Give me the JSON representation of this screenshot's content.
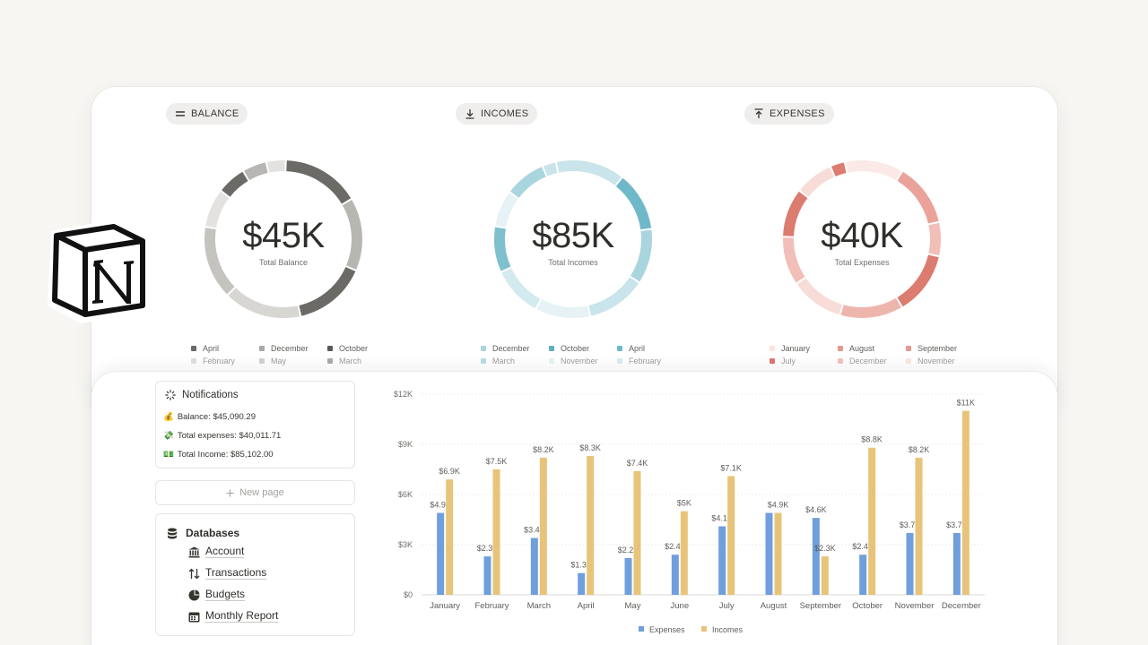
{
  "summary": {
    "balance": {
      "pill_label": "BALANCE",
      "icon": "equals-icon",
      "value": "$45K",
      "caption": "Total Balance",
      "slices": [
        {
          "color": "#e3e2e0",
          "value": 4
        },
        {
          "color": "#6b6a66",
          "value": 16
        },
        {
          "color": "#b7b6b3",
          "value": 15
        },
        {
          "color": "#6b6a66",
          "value": 15
        },
        {
          "color": "#d7d6d3",
          "value": 16
        },
        {
          "color": "#c4c3c0",
          "value": 15
        },
        {
          "color": "#e3e2e0",
          "value": 8
        },
        {
          "color": "#6b6a66",
          "value": 6
        },
        {
          "color": "#b7b6b3",
          "value": 5
        }
      ],
      "legend": [
        {
          "label": "April",
          "color": "#6b6a66",
          "faded": false
        },
        {
          "label": "December",
          "color": "#a9a8a5",
          "faded": false
        },
        {
          "label": "October",
          "color": "#5a5955",
          "faded": false
        },
        {
          "label": "February",
          "color": "#dcdbd8",
          "faded": true
        },
        {
          "label": "May",
          "color": "#d0cfcc",
          "faded": true
        },
        {
          "label": "March",
          "color": "#a9a8a5",
          "faded": true
        }
      ]
    },
    "incomes": {
      "pill_label": "INCOMES",
      "icon": "download-icon",
      "value": "$85K",
      "caption": "Total Incomes",
      "slices": [
        {
          "color": "#c9e4ea",
          "value": 15
        },
        {
          "color": "#6fb8c8",
          "value": 13
        },
        {
          "color": "#a9d5df",
          "value": 12
        },
        {
          "color": "#c9e4ea",
          "value": 13
        },
        {
          "color": "#e6f2f5",
          "value": 12
        },
        {
          "color": "#d3eaef",
          "value": 11
        },
        {
          "color": "#7fc0cf",
          "value": 10
        },
        {
          "color": "#e6f2f5",
          "value": 8
        },
        {
          "color": "#a9d5df",
          "value": 9
        },
        {
          "color": "#c9e4ea",
          "value": 3
        }
      ],
      "legend": [
        {
          "label": "December",
          "color": "#a9d5df",
          "faded": false
        },
        {
          "label": "October",
          "color": "#5fb0c2",
          "faded": false
        },
        {
          "label": "April",
          "color": "#6fb8c8",
          "faded": false
        },
        {
          "label": "March",
          "color": "#b5dae3",
          "faded": true
        },
        {
          "label": "November",
          "color": "#e3f0f3",
          "faded": true
        },
        {
          "label": "February",
          "color": "#d3eaef",
          "faded": true
        }
      ]
    },
    "expenses": {
      "pill_label": "EXPENSES",
      "icon": "upload-icon",
      "value": "$40K",
      "caption": "Total Expenses",
      "slices": [
        {
          "color": "#fae9e6",
          "value": 12
        },
        {
          "color": "#eaa29a",
          "value": 13
        },
        {
          "color": "#f1bfb8",
          "value": 7
        },
        {
          "color": "#dc7b6f",
          "value": 13
        },
        {
          "color": "#eeb5ad",
          "value": 13
        },
        {
          "color": "#f7dcd7",
          "value": 11
        },
        {
          "color": "#f1bfb8",
          "value": 10
        },
        {
          "color": "#dc7b6f",
          "value": 10
        },
        {
          "color": "#f7dcd7",
          "value": 8
        },
        {
          "color": "#dc7b6f",
          "value": 3
        }
      ],
      "legend": [
        {
          "label": "January",
          "color": "#f9e4e0",
          "faded": false
        },
        {
          "label": "August",
          "color": "#e39a91",
          "faded": false
        },
        {
          "label": "September",
          "color": "#e39a91",
          "faded": false
        },
        {
          "label": "July",
          "color": "#d9776b",
          "faded": true
        },
        {
          "label": "December",
          "color": "#f1bfb8",
          "faded": true
        },
        {
          "label": "November",
          "color": "#f9e4e0",
          "faded": true
        }
      ]
    }
  },
  "notifications": {
    "title": "Notifications",
    "lines": [
      {
        "emoji": "💰",
        "text": "Balance: $45,090.29"
      },
      {
        "emoji": "💸",
        "text": "Total expenses: $40,011.71"
      },
      {
        "emoji": "💵",
        "text": "Total Income: $85,102.00"
      }
    ]
  },
  "new_page": {
    "label": "New page"
  },
  "databases": {
    "title": "Databases",
    "items": [
      {
        "label": "Account",
        "icon": "bank-icon"
      },
      {
        "label": "Transactions",
        "icon": "arrows-updown-icon"
      },
      {
        "label": "Budgets",
        "icon": "pie-icon"
      },
      {
        "label": "Monthly Report",
        "icon": "calendar-icon"
      }
    ]
  },
  "colors": {
    "expenses": "#6f9fdc",
    "incomes": "#e7c47a"
  },
  "chart_data": {
    "type": "bar",
    "categories": [
      "January",
      "February",
      "March",
      "April",
      "May",
      "June",
      "July",
      "August",
      "September",
      "October",
      "November",
      "December"
    ],
    "series": [
      {
        "name": "Expenses",
        "values": [
          4.9,
          2.3,
          3.4,
          1.3,
          2.2,
          2.4,
          4.1,
          4.9,
          4.6,
          2.4,
          3.7,
          3.7
        ],
        "labels": [
          "$4.9K",
          "$2.3K",
          "$3.4K",
          "$1.3K",
          "$2.2K",
          "$2.4K",
          "$4.1K",
          "",
          "$4.6K",
          "$2.4K",
          "$3.7K",
          "$3.7K"
        ]
      },
      {
        "name": "Incomes",
        "values": [
          6.9,
          7.5,
          8.2,
          8.3,
          7.4,
          5.0,
          7.1,
          4.9,
          2.3,
          8.8,
          8.2,
          11.0
        ],
        "labels": [
          "$6.9K",
          "$7.5K",
          "$8.2K",
          "$8.3K",
          "$7.4K",
          "$5K",
          "$7.1K",
          "$4.9K",
          "$2.3K",
          "$8.8K",
          "$8.2K",
          "$11K"
        ]
      }
    ],
    "yticks": [
      "$0",
      "$3K",
      "$6K",
      "$9K",
      "$12K"
    ],
    "ylim": [
      0,
      12
    ],
    "legend": "bottom-center",
    "grid": true
  }
}
